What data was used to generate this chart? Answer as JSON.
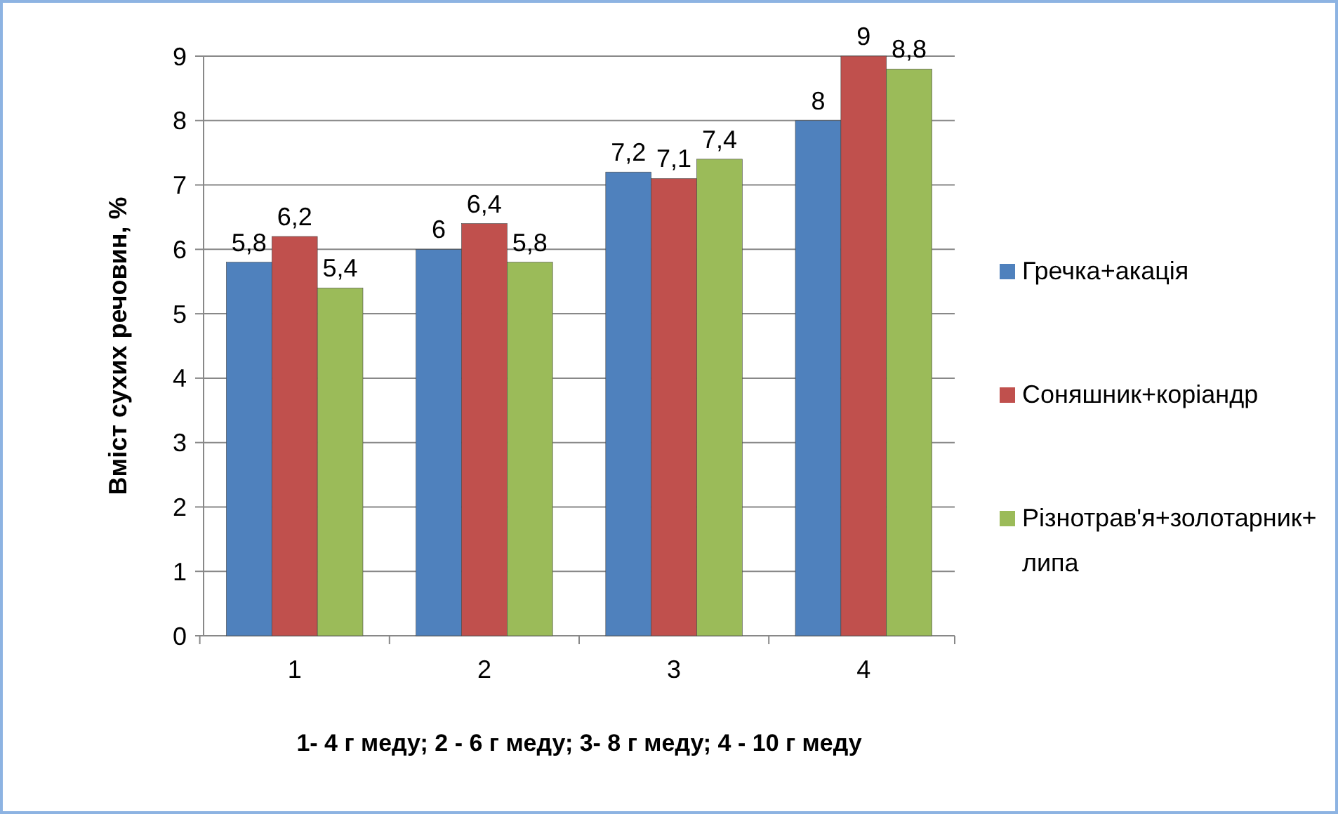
{
  "chart_data": {
    "type": "bar",
    "xlabel": "1-  4 г меду; 2 - 6 г меду; 3- 8 г меду; 4 - 10 г меду",
    "ylabel": "Вміст сухих речовин, %",
    "categories": [
      "1",
      "2",
      "3",
      "4"
    ],
    "series": [
      {
        "name": "Гречка+акація",
        "color": "#4f81bd",
        "values": [
          5.8,
          6,
          7.2,
          8
        ],
        "value_labels": [
          "5,8",
          "6",
          "7,2",
          "8"
        ]
      },
      {
        "name": "Соняшник+коріандр",
        "color": "#c0504d",
        "values": [
          6.2,
          6.4,
          7.1,
          9
        ],
        "value_labels": [
          "6,2",
          "6,4",
          "7,1",
          "9"
        ]
      },
      {
        "name": "Різнотрав'я+золотарник+липа",
        "color": "#9bbb59",
        "values": [
          5.4,
          5.8,
          7.4,
          8.8
        ],
        "value_labels": [
          "5,4",
          "5,8",
          "7,4",
          "8,8"
        ]
      }
    ],
    "ylim": [
      0,
      9
    ],
    "yticks": [
      0,
      1,
      2,
      3,
      4,
      5,
      6,
      7,
      8,
      9
    ],
    "grid": "y",
    "legend": "right"
  }
}
